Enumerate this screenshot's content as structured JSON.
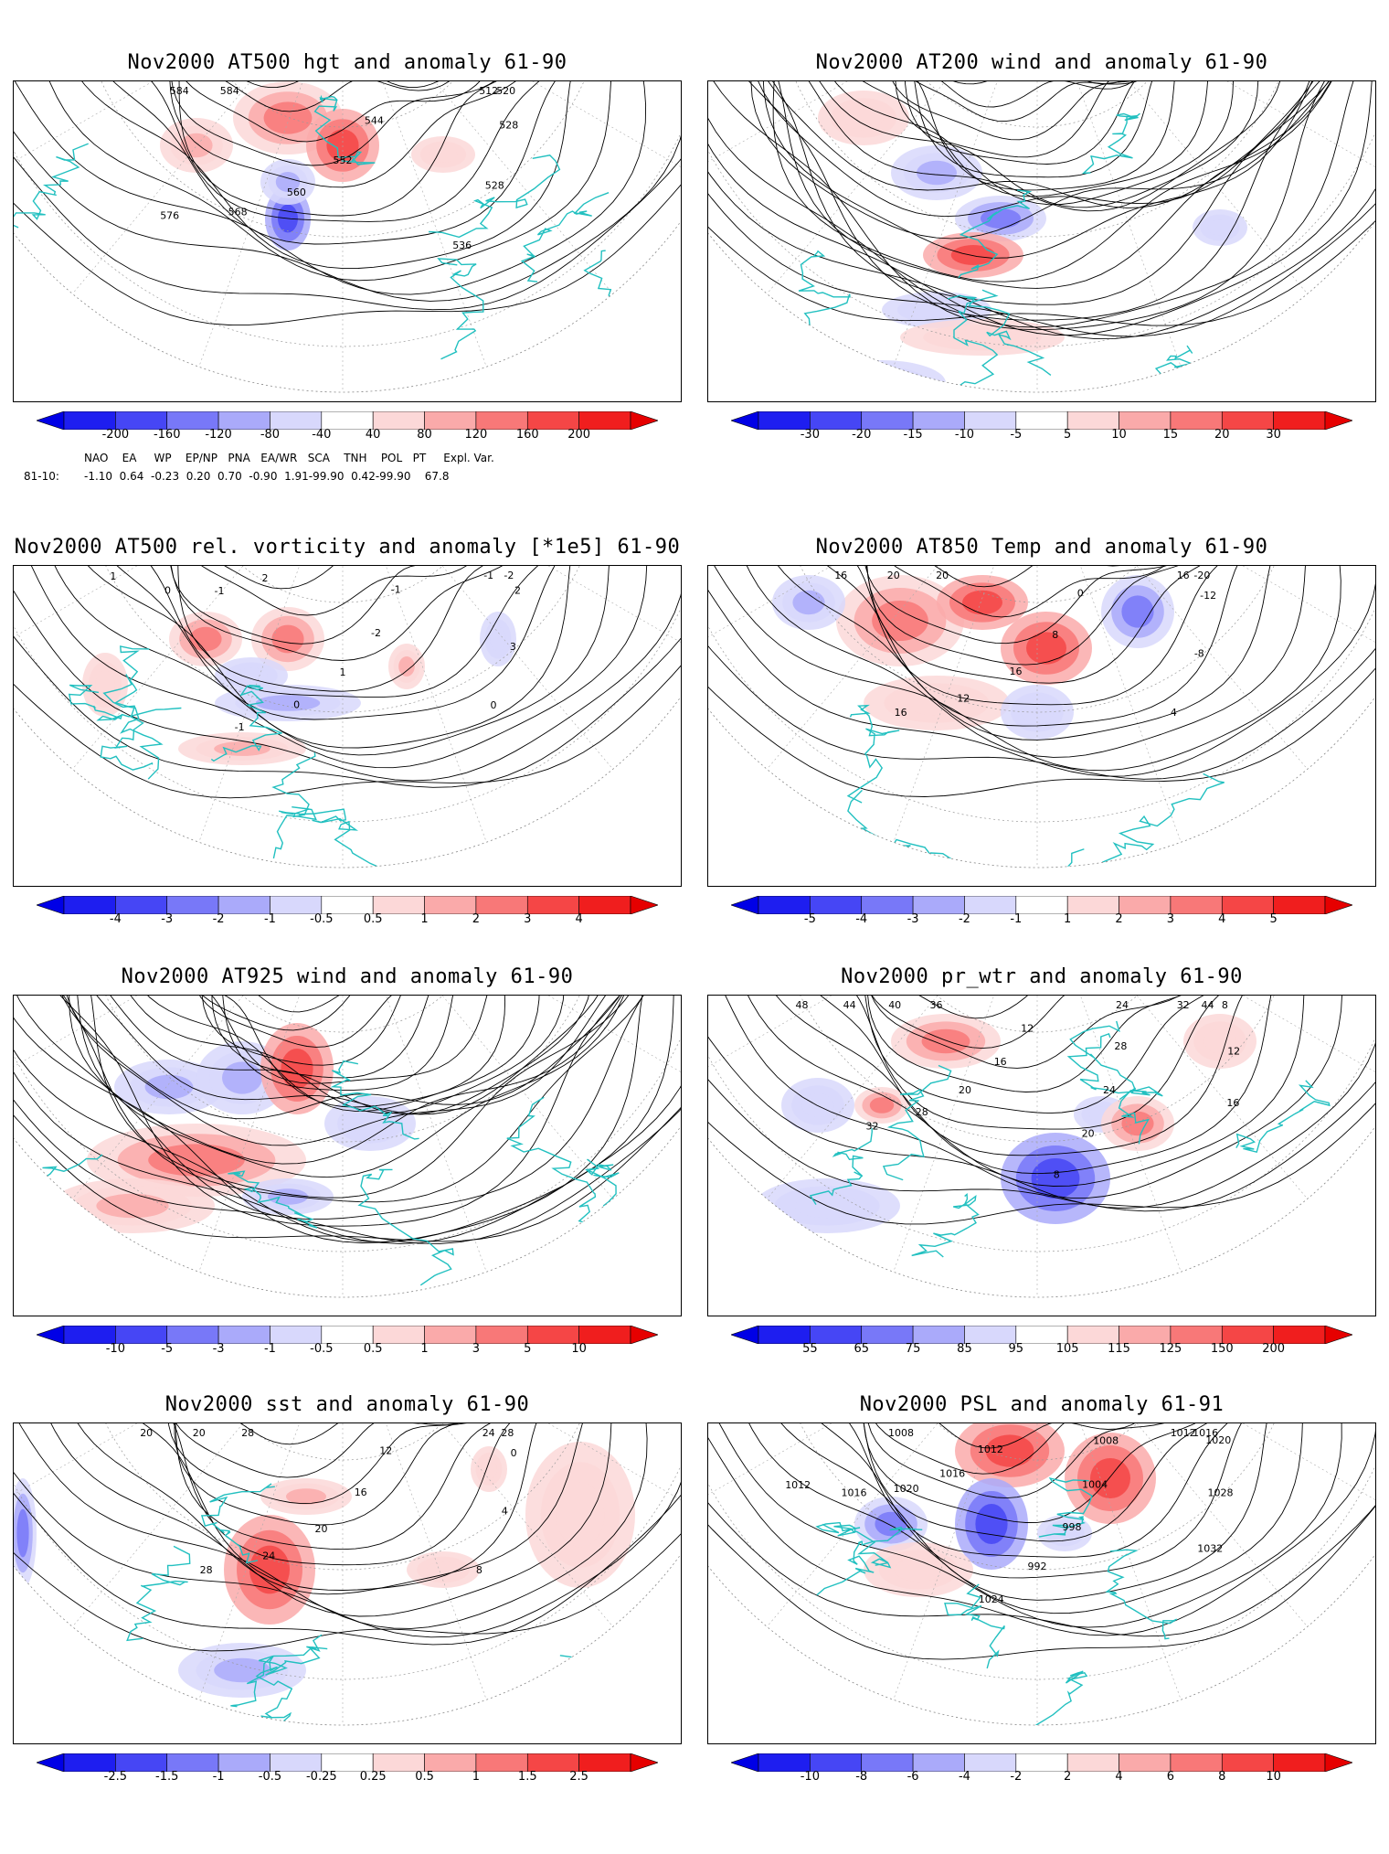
{
  "panels": [
    {
      "id": "hgt500",
      "title": "Nov2000 AT500 hgt and anomaly 61-90",
      "ticks": [
        "-200",
        "-160",
        "-120",
        "-80",
        "-40",
        "40",
        "80",
        "120",
        "160",
        "200"
      ],
      "labels": [
        "512",
        "520",
        "528",
        "528",
        "536",
        "544",
        "552",
        "560",
        "568",
        "576",
        "584",
        "584"
      ]
    },
    {
      "id": "wind200",
      "title": "Nov2000 AT200 wind and anomaly 61-90",
      "ticks": [
        "-30",
        "-20",
        "-15",
        "-10",
        "-5",
        "5",
        "10",
        "15",
        "20",
        "30"
      ],
      "labels": []
    },
    {
      "id": "vort500",
      "title": "Nov2000 AT500 rel. vorticity and anomaly [*1e5] 61-90",
      "ticks": [
        "-4",
        "-3",
        "-2",
        "-1",
        "-0.5",
        "0.5",
        "1",
        "2",
        "3",
        "4"
      ],
      "labels": [
        "-1",
        "-2",
        "2",
        "3",
        "0",
        "-1",
        "-2",
        "1",
        "0",
        "-1",
        "2",
        "-1",
        "0",
        "1"
      ]
    },
    {
      "id": "temp850",
      "title": "Nov2000 AT850 Temp and anomaly 61-90",
      "ticks": [
        "-5",
        "-4",
        "-3",
        "-2",
        "-1",
        "1",
        "2",
        "3",
        "4",
        "5"
      ],
      "labels": [
        "16",
        "-20",
        "-12",
        "-8",
        "4",
        "0",
        "8",
        "16",
        "12",
        "16",
        "20",
        "20",
        "16"
      ]
    },
    {
      "id": "wind925",
      "title": "Nov2000 AT925 wind and anomaly 61-90",
      "ticks": [
        "-10",
        "-5",
        "-3",
        "-1",
        "-0.5",
        "0.5",
        "1",
        "3",
        "5",
        "10"
      ],
      "labels": []
    },
    {
      "id": "prwtr",
      "title": "Nov2000 pr_wtr and anomaly 61-90",
      "ticks": [
        "55",
        "65",
        "75",
        "85",
        "95",
        "105",
        "115",
        "125",
        "150",
        "200"
      ],
      "labels": [
        "32",
        "44",
        "8",
        "12",
        "16",
        "24",
        "28",
        "24",
        "20",
        "8",
        "12",
        "16",
        "20",
        "28",
        "32",
        "36",
        "40",
        "44",
        "48"
      ]
    },
    {
      "id": "sst",
      "title": "Nov2000 sst and anomaly 61-90",
      "ticks": [
        "-2.5",
        "-1.5",
        "-1",
        "-0.5",
        "-0.25",
        "0.25",
        "0.5",
        "1",
        "1.5",
        "2.5"
      ],
      "labels": [
        "24",
        "28",
        "0",
        "4",
        "8",
        "12",
        "16",
        "20",
        "24",
        "28",
        "28",
        "20",
        "20"
      ]
    },
    {
      "id": "psl",
      "title": "Nov2000 PSL and anomaly 61-91",
      "ticks": [
        "-10",
        "-8",
        "-6",
        "-4",
        "-2",
        "2",
        "4",
        "6",
        "8",
        "10"
      ],
      "labels": [
        "1012",
        "1016",
        "1020",
        "1028",
        "1032",
        "1008",
        "1004",
        "998",
        "992",
        "1024",
        "1012",
        "1016",
        "1020",
        "1016",
        "1012",
        "1008"
      ]
    }
  ],
  "indices": {
    "header": "NAO    EA     WP    EP/NP   PNA   EA/WR   SCA    TNH    POL   PT     Expl. Var.",
    "row_label": "81-10:",
    "values": "-1.10  0.64  -0.23  0.20  0.70  -0.90  1.91-99.90  0.42-99.90    67.8"
  },
  "colors": {
    "neg": [
      "#1e1ef0",
      "#4646f5",
      "#7878f8",
      "#aaaafa",
      "#d8d8fc"
    ],
    "pos": [
      "#fcd8d8",
      "#faaaaa",
      "#f87878",
      "#f54646",
      "#f01e1e"
    ],
    "coast": "#22c0c0"
  }
}
